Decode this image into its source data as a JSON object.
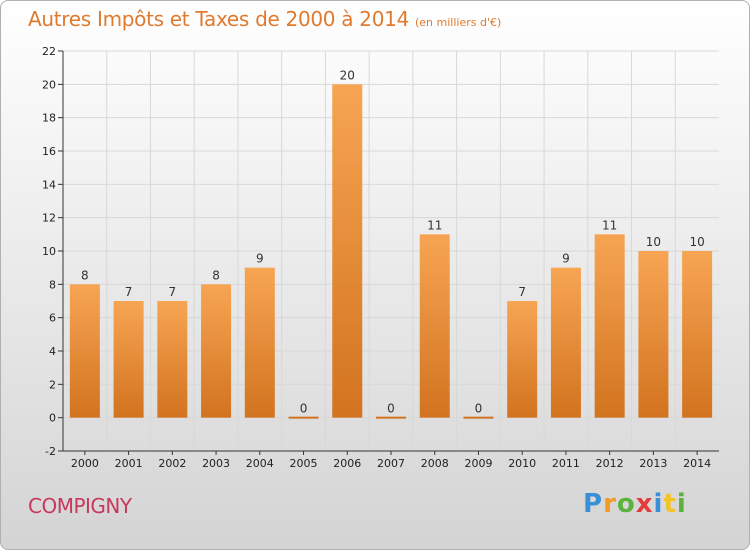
{
  "title": {
    "main": "Autres Impôts et Taxes de 2000 à 2014",
    "unit": "(en milliers d'€)"
  },
  "location": "COMPIGNY",
  "logo": {
    "text": "Proxiti",
    "letters": [
      {
        "ch": "P",
        "color": "#3a8fd6"
      },
      {
        "ch": "r",
        "color": "#f29a24"
      },
      {
        "ch": "o",
        "color": "#5bb33c"
      },
      {
        "ch": "x",
        "color": "#e53b3b"
      },
      {
        "ch": "i",
        "color": "#3a8fd6"
      },
      {
        "ch": "t",
        "color": "#f2c424"
      },
      {
        "ch": "i",
        "color": "#5bb33c"
      }
    ]
  },
  "colors": {
    "bar_light": "#f7a553",
    "bar_dark": "#d2731f",
    "axis": "#333333",
    "grid": "#d8d8d8",
    "title": "#e07a2e",
    "location": "#c8385a"
  },
  "chart_data": {
    "type": "bar",
    "categories": [
      "2000",
      "2001",
      "2002",
      "2003",
      "2004",
      "2005",
      "2006",
      "2007",
      "2008",
      "2009",
      "2010",
      "2011",
      "2012",
      "2013",
      "2014"
    ],
    "values": [
      8,
      7,
      7,
      8,
      9,
      0,
      20,
      0,
      11,
      0,
      7,
      9,
      11,
      10,
      10
    ],
    "data_labels": [
      "8",
      "7",
      "7",
      "8",
      "9",
      "0",
      "20",
      "0",
      "11",
      "0",
      "7",
      "9",
      "11",
      "10",
      "10"
    ],
    "yticks": [
      -2,
      0,
      2,
      4,
      6,
      8,
      10,
      12,
      14,
      16,
      18,
      20,
      22
    ],
    "ylim": [
      -2,
      22
    ],
    "grid": true,
    "legend": "none"
  }
}
